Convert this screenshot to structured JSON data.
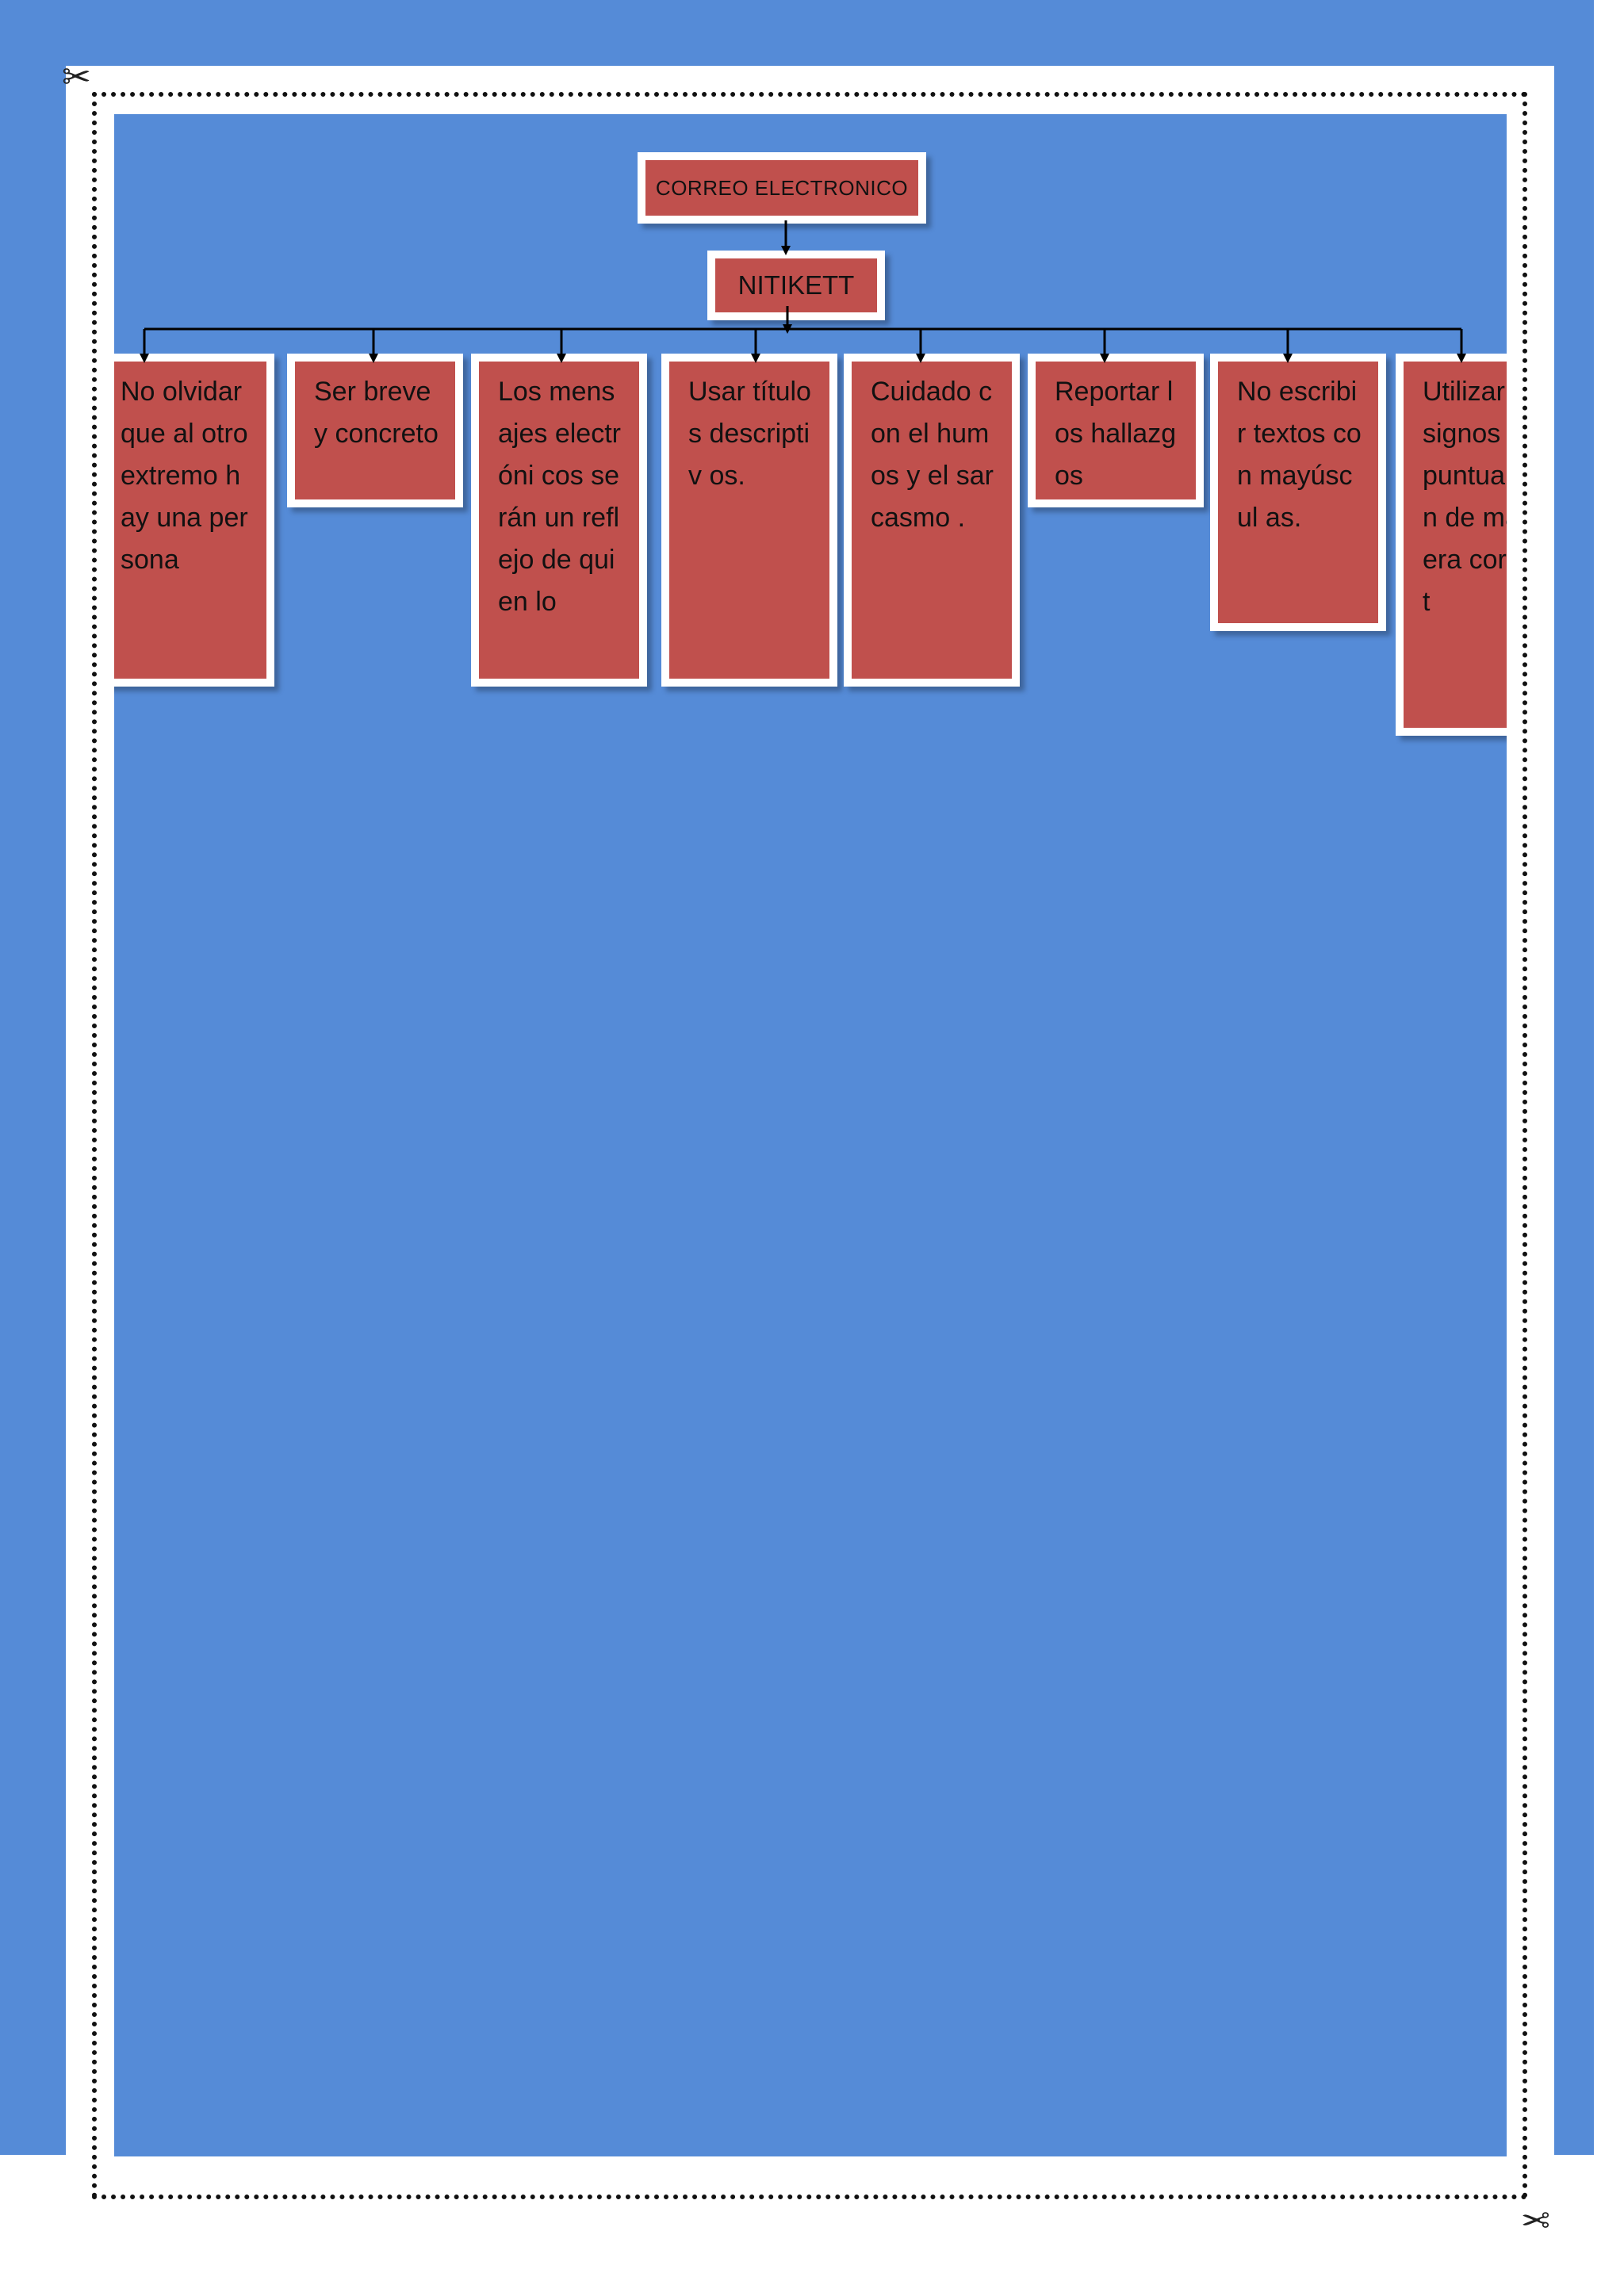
{
  "diagram": {
    "root": {
      "label": "CORREO ELECTRONICO"
    },
    "middle": {
      "label": "NITIKETT"
    },
    "items": [
      {
        "label": "No olvidar que al otro extremo hay una persona"
      },
      {
        "label": "Ser breve y concreto"
      },
      {
        "label": "Los mensajes electróni cos serán un reflejo de quien lo"
      },
      {
        "label": "Usar títulos descriptiv os."
      },
      {
        "label": "Cuidado con el humos y el sarcasmo ."
      },
      {
        "label": "Reportar los hallazgos"
      },
      {
        "label": "No escribir textos con mayúscul as."
      },
      {
        "label": "Utilizar los signos de puntua ción de manera correct"
      }
    ]
  },
  "colors": {
    "page_background": "#558bd7",
    "box_fill": "#c0504d",
    "box_border": "#ffffff",
    "connector": "#000000"
  },
  "icons": [
    "scissors-icon"
  ]
}
